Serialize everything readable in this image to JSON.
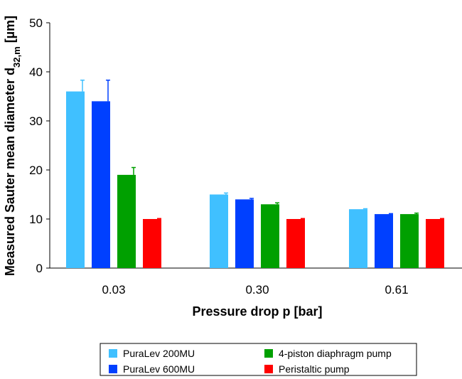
{
  "chart_data": {
    "type": "bar",
    "title": "",
    "xlabel": "Pressure drop p [bar]",
    "ylabel": {
      "main": "Measured Sauter mean diameter d",
      "subscript": "32,m",
      "unit": " [µm]"
    },
    "ylim": [
      0,
      50
    ],
    "yticks": [
      0,
      10,
      20,
      30,
      40,
      50
    ],
    "categories": [
      "0.03",
      "0.30",
      "0.61"
    ],
    "series": [
      {
        "name": "PuraLev 200MU",
        "color": "#40c0ff",
        "values": [
          36,
          15,
          12
        ],
        "errors": [
          2.3,
          0.3,
          0.1
        ]
      },
      {
        "name": "PuraLev 600MU",
        "color": "#0040ff",
        "values": [
          34,
          14,
          11
        ],
        "errors": [
          4.3,
          0.2,
          0.1
        ]
      },
      {
        "name": "4-piston diaphragm pump",
        "color": "#00a000",
        "values": [
          19,
          13,
          11
        ],
        "errors": [
          1.5,
          0.3,
          0.2
        ]
      },
      {
        "name": "Peristaltic pump",
        "color": "#ff0000",
        "values": [
          10,
          10,
          10
        ],
        "errors": [
          0.1,
          0.1,
          0.1
        ]
      }
    ],
    "legend": {
      "position": "bottom",
      "columns": 2
    }
  }
}
